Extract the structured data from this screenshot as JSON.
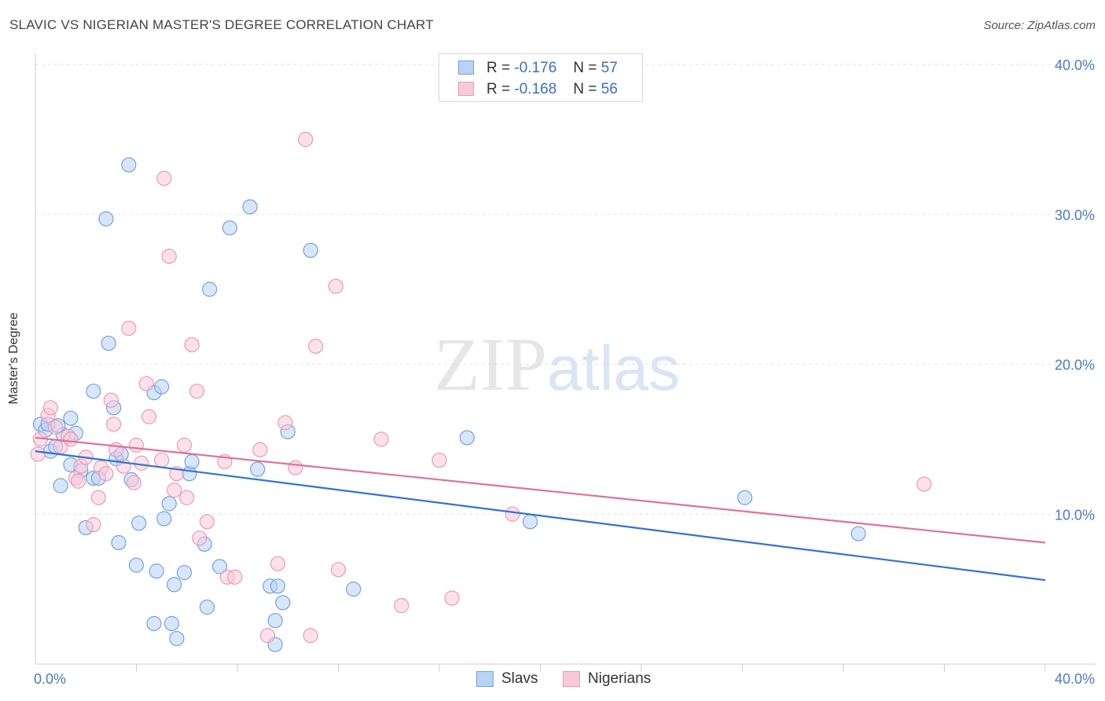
{
  "title": "SLAVIC VS NIGERIAN MASTER'S DEGREE CORRELATION CHART",
  "source": "Source: ZipAtlas.com",
  "watermark": {
    "zip": "ZIP",
    "atlas": "atlas"
  },
  "legend": [
    {
      "r_label": "R =",
      "r_value": "-0.176",
      "n_label": "N =",
      "n_value": "57"
    },
    {
      "r_label": "R =",
      "r_value": "-0.168",
      "n_label": "N =",
      "n_value": "56"
    }
  ],
  "chart_data": {
    "type": "scatter",
    "title": "SLAVIC VS NIGERIAN MASTER'S DEGREE CORRELATION CHART",
    "xlabel": "",
    "ylabel": "Master's Degree",
    "xlim": [
      0,
      40
    ],
    "ylim": [
      0,
      40
    ],
    "x_tick_labels": [
      "0.0%",
      "40.0%"
    ],
    "y_ticks": [
      10,
      20,
      30,
      40
    ],
    "y_tick_labels": [
      "10.0%",
      "20.0%",
      "30.0%",
      "40.0%"
    ],
    "grid": true,
    "legend_position": "top-center",
    "series": [
      {
        "name": "Slavs",
        "color": "#6fa3e6",
        "fill": "#b9d2f5",
        "line_color": "#2f74d0",
        "trend": {
          "x": [
            0,
            40
          ],
          "y": [
            14.2,
            5.6
          ]
        },
        "points": [
          [
            0.2,
            16.0
          ],
          [
            0.4,
            15.6
          ],
          [
            0.6,
            14.2
          ],
          [
            0.8,
            14.5
          ],
          [
            1.1,
            15.3
          ],
          [
            1.4,
            16.4
          ],
          [
            1.0,
            11.9
          ],
          [
            1.4,
            13.3
          ],
          [
            1.6,
            15.4
          ],
          [
            1.8,
            12.9
          ],
          [
            2.0,
            9.1
          ],
          [
            2.3,
            12.4
          ],
          [
            2.5,
            12.4
          ],
          [
            2.3,
            18.2
          ],
          [
            2.8,
            29.7
          ],
          [
            2.9,
            21.4
          ],
          [
            3.1,
            17.1
          ],
          [
            3.2,
            13.7
          ],
          [
            3.3,
            8.1
          ],
          [
            3.4,
            14.0
          ],
          [
            3.7,
            33.3
          ],
          [
            3.8,
            12.3
          ],
          [
            4.1,
            9.4
          ],
          [
            4.0,
            6.6
          ],
          [
            4.7,
            18.1
          ],
          [
            5.0,
            18.5
          ],
          [
            5.1,
            9.7
          ],
          [
            5.3,
            10.7
          ],
          [
            4.8,
            6.2
          ],
          [
            4.7,
            2.7
          ],
          [
            5.5,
            5.3
          ],
          [
            5.6,
            1.7
          ],
          [
            5.4,
            2.7
          ],
          [
            5.9,
            6.1
          ],
          [
            6.1,
            12.7
          ],
          [
            6.2,
            13.5
          ],
          [
            6.7,
            8.0
          ],
          [
            6.8,
            3.8
          ],
          [
            6.9,
            25.0
          ],
          [
            7.3,
            6.5
          ],
          [
            7.7,
            29.1
          ],
          [
            8.5,
            30.5
          ],
          [
            8.8,
            13.0
          ],
          [
            9.3,
            5.2
          ],
          [
            9.6,
            5.2
          ],
          [
            9.5,
            1.3
          ],
          [
            9.8,
            4.1
          ],
          [
            9.5,
            2.9
          ],
          [
            10.0,
            15.5
          ],
          [
            10.9,
            27.6
          ],
          [
            12.6,
            5.0
          ],
          [
            17.1,
            15.1
          ],
          [
            19.6,
            9.5
          ],
          [
            28.1,
            11.1
          ],
          [
            32.6,
            8.7
          ],
          [
            0.5,
            16.0
          ],
          [
            0.9,
            15.9
          ]
        ]
      },
      {
        "name": "Nigerians",
        "color": "#ec9ab6",
        "fill": "#f8c9d8",
        "line_color": "#e0719a",
        "trend": {
          "x": [
            0,
            40
          ],
          "y": [
            15.1,
            8.1
          ]
        },
        "points": [
          [
            0.1,
            14.0
          ],
          [
            0.2,
            15.0
          ],
          [
            0.5,
            16.6
          ],
          [
            0.6,
            17.1
          ],
          [
            0.8,
            15.8
          ],
          [
            1.0,
            14.5
          ],
          [
            1.3,
            15.2
          ],
          [
            1.4,
            15.0
          ],
          [
            1.6,
            12.4
          ],
          [
            1.7,
            12.2
          ],
          [
            1.8,
            13.2
          ],
          [
            2.0,
            13.8
          ],
          [
            2.3,
            9.3
          ],
          [
            2.5,
            11.1
          ],
          [
            2.6,
            13.1
          ],
          [
            2.8,
            12.7
          ],
          [
            3.0,
            17.6
          ],
          [
            3.1,
            16.0
          ],
          [
            3.2,
            14.3
          ],
          [
            3.5,
            13.2
          ],
          [
            3.7,
            22.4
          ],
          [
            3.9,
            12.1
          ],
          [
            4.0,
            14.6
          ],
          [
            4.2,
            13.4
          ],
          [
            4.4,
            18.7
          ],
          [
            4.5,
            16.5
          ],
          [
            5.0,
            13.6
          ],
          [
            5.1,
            32.4
          ],
          [
            5.3,
            27.2
          ],
          [
            5.5,
            11.6
          ],
          [
            5.6,
            12.7
          ],
          [
            5.9,
            14.6
          ],
          [
            6.0,
            11.1
          ],
          [
            6.2,
            21.3
          ],
          [
            6.4,
            18.2
          ],
          [
            6.5,
            8.4
          ],
          [
            6.8,
            9.5
          ],
          [
            7.5,
            13.5
          ],
          [
            7.6,
            5.8
          ],
          [
            7.9,
            5.8
          ],
          [
            8.9,
            14.3
          ],
          [
            9.2,
            1.9
          ],
          [
            9.6,
            6.7
          ],
          [
            9.9,
            16.1
          ],
          [
            10.3,
            13.1
          ],
          [
            10.7,
            35.0
          ],
          [
            10.9,
            1.9
          ],
          [
            11.1,
            21.2
          ],
          [
            11.9,
            25.2
          ],
          [
            12.0,
            6.3
          ],
          [
            13.7,
            15.0
          ],
          [
            14.5,
            3.9
          ],
          [
            16.0,
            13.6
          ],
          [
            16.5,
            4.4
          ],
          [
            18.9,
            10.0
          ],
          [
            35.2,
            12.0
          ]
        ]
      }
    ]
  }
}
